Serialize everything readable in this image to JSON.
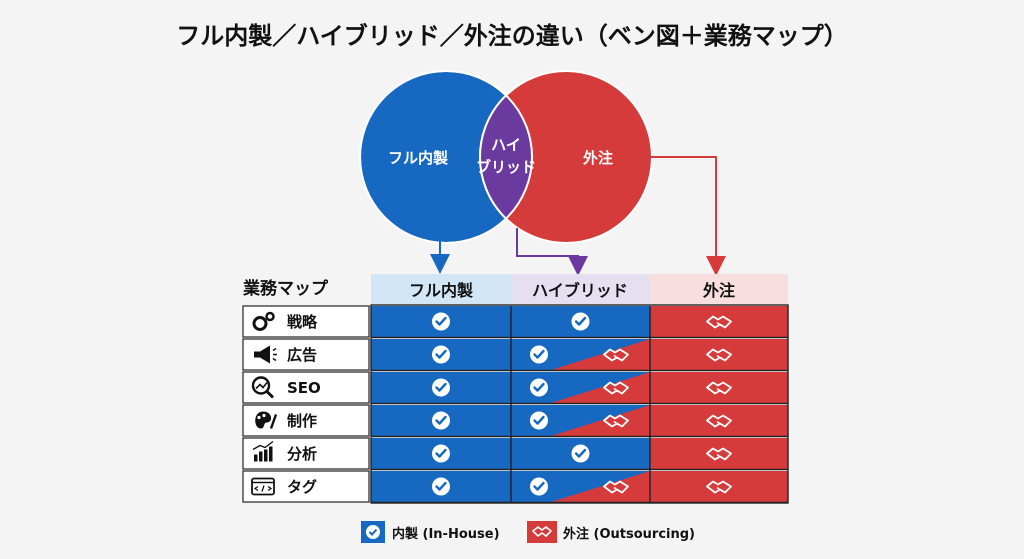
{
  "title": "フル内製／ハイブリッド／外注の違い（ベン図＋業務マップ）",
  "colors": {
    "inhouse": "#1768c0",
    "hybrid": "#6a3a9e",
    "outsource": "#d63b3b",
    "header_inhouse_bg": "#d3e6f5",
    "header_hybrid_bg": "#e6dff0",
    "header_outsource_bg": "#f8dede"
  },
  "venn": {
    "left_label": "フル内製",
    "middle_label_line1": "ハイ",
    "middle_label_line2": "ブリッド",
    "right_label": "外注"
  },
  "table": {
    "corner_label": "業務マップ",
    "columns": [
      "フル内製",
      "ハイブリッド",
      "外注"
    ],
    "rows": [
      {
        "label": "戦略",
        "icon": "gears-icon",
        "inhouse": "inhouse",
        "hybrid": "inhouse",
        "outsource": "outsource"
      },
      {
        "label": "広告",
        "icon": "megaphone-icon",
        "inhouse": "inhouse",
        "hybrid": "split",
        "outsource": "outsource"
      },
      {
        "label": "SEO",
        "icon": "magnifier-chart-icon",
        "inhouse": "inhouse",
        "hybrid": "split",
        "outsource": "outsource"
      },
      {
        "label": "制作",
        "icon": "palette-icon",
        "inhouse": "inhouse",
        "hybrid": "split",
        "outsource": "outsource"
      },
      {
        "label": "分析",
        "icon": "bar-chart-icon",
        "inhouse": "inhouse",
        "hybrid": "inhouse",
        "outsource": "outsource"
      },
      {
        "label": "タグ",
        "icon": "code-window-icon",
        "inhouse": "inhouse",
        "hybrid": "split",
        "outsource": "outsource"
      }
    ]
  },
  "legend": {
    "inhouse": "内製 (In-House)",
    "outsource": "外注 (Outsourcing)"
  }
}
